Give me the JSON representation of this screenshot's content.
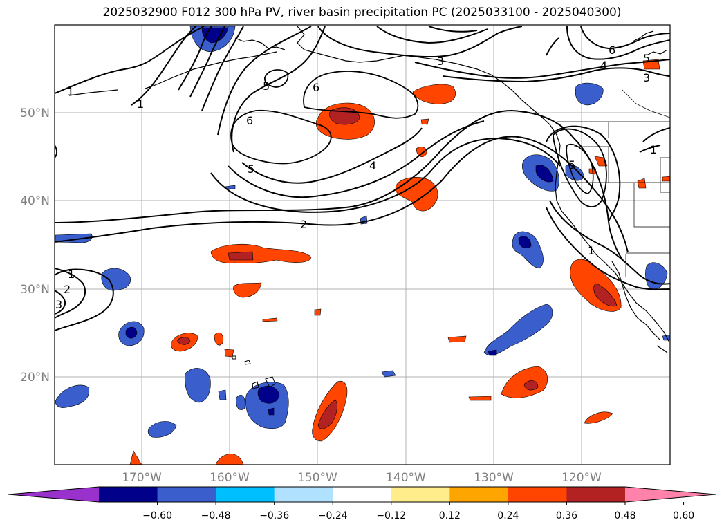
{
  "title": "2025032900 F012 300 hPa PV, river basin precipitation PC (2025033100 - 2025040300)",
  "lat_labels": [
    "50°N",
    "40°N",
    "30°N",
    "20°N"
  ],
  "lon_labels": [
    "170°W",
    "160°W",
    "150°W",
    "140°W",
    "130°W",
    "120°W"
  ],
  "colorbar": {
    "ticks": [
      "−0.60",
      "−0.48",
      "−0.36",
      "−0.24",
      "−0.12",
      "0.12",
      "0.24",
      "0.36",
      "0.48",
      "0.60"
    ],
    "colors": [
      "#9932cc",
      "#00008b",
      "#3a5fcd",
      "#00bfff",
      "#b0e2ff",
      "#ffffff",
      "#ffec8b",
      "#ffa500",
      "#ff4500",
      "#b22222",
      "#ff82ab"
    ]
  },
  "contour_labels": [
    "1",
    "1",
    "2",
    "3",
    "4",
    "5",
    "6",
    "6",
    "5",
    "4",
    "3",
    "5",
    "6",
    "1",
    "5",
    "1",
    "2",
    "3",
    "1"
  ]
}
